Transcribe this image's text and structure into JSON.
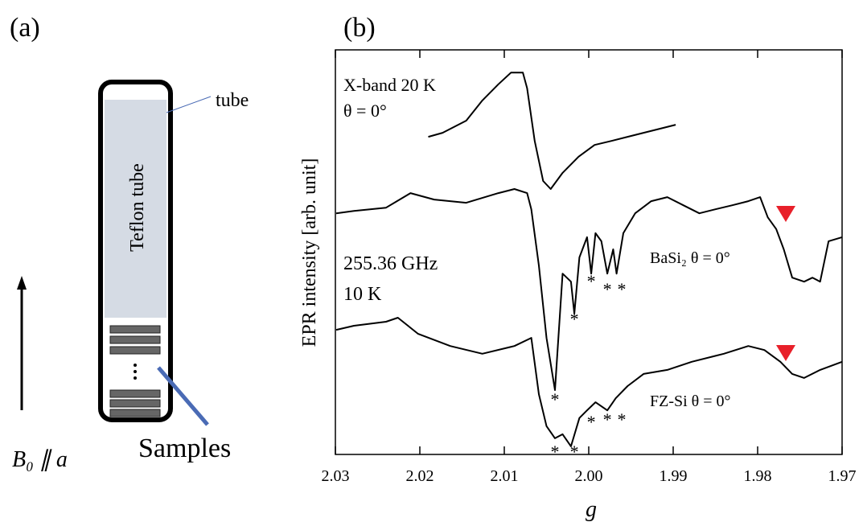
{
  "panel_a": {
    "label": "(a)",
    "tube": "tube",
    "teflon": "Teflon tube",
    "samples": "Samples",
    "field": "B₀ ∥ a"
  },
  "chart_data": {
    "type": "line",
    "panel_label": "(b)",
    "xlabel": "g",
    "ylabel": "EPR intensity [arb. unit]",
    "xlim": [
      2.03,
      1.97
    ],
    "ylim": [
      0,
      100
    ],
    "xticks": [
      2.03,
      2.02,
      2.01,
      {
        "value": 2.0,
        "label": "2.00"
      },
      1.99,
      1.98,
      1.97
    ],
    "series": [
      {
        "name": "X-band 20 K",
        "color": "#000000",
        "x": [
          2.019,
          2.0173,
          2.0145,
          2.0126,
          2.0107,
          2.0092,
          2.0078,
          2.0073,
          2.0064,
          2.0054,
          2.0045,
          2.0031,
          2.0012,
          1.9993,
          1.9973,
          1.9954,
          1.9935,
          1.9916,
          1.9897
        ],
        "values": [
          78.5,
          79.5,
          82.5,
          87.5,
          91.5,
          94.4,
          94.4,
          90.5,
          77.5,
          67.6,
          65.6,
          69.6,
          73.6,
          76.5,
          77.5,
          78.5,
          79.5,
          80.5,
          81.5
        ]
      },
      {
        "name": "BaSi₂ θ = 0°",
        "color": "#000000",
        "x": [
          2.0299,
          2.0278,
          2.024,
          2.0211,
          2.0183,
          2.0145,
          2.0107,
          2.0088,
          2.0073,
          2.0068,
          2.0059,
          2.005,
          2.004,
          2.0031,
          2.0021,
          2.0017,
          2.0011,
          2.0002,
          1.9997,
          1.9992,
          1.9985,
          1.9978,
          1.9971,
          1.9967,
          1.9959,
          1.9945,
          1.9926,
          1.9907,
          1.9888,
          1.9869,
          1.985,
          1.983,
          1.9811,
          1.9797,
          1.9788,
          1.9778,
          1.9769,
          1.9759,
          1.9745,
          1.9735,
          1.9726,
          1.9716,
          1.97
        ],
        "values": [
          59.6,
          60.2,
          61.0,
          64.6,
          63.0,
          62.2,
          64.6,
          65.6,
          64.6,
          60.6,
          46.7,
          28.8,
          15.9,
          44.7,
          42.7,
          34.8,
          48.7,
          53.7,
          44.7,
          54.7,
          52.7,
          44.7,
          50.7,
          44.7,
          54.7,
          59.6,
          62.6,
          63.6,
          61.6,
          59.6,
          60.6,
          61.6,
          62.6,
          63.6,
          58.6,
          55.7,
          50.7,
          43.7,
          42.7,
          43.7,
          42.7,
          52.7,
          53.7
        ]
      },
      {
        "name": "FZ-Si θ = 0°",
        "color": "#000000",
        "x": [
          2.0299,
          2.0278,
          2.024,
          2.0226,
          2.0202,
          2.0164,
          2.0126,
          2.0088,
          2.0068,
          2.0059,
          2.005,
          2.004,
          2.0031,
          2.0021,
          2.0011,
          2.0002,
          1.9992,
          1.9978,
          1.9968,
          1.9954,
          1.9935,
          1.9907,
          1.9878,
          1.984,
          1.9811,
          1.9792,
          1.9773,
          1.9759,
          1.9745,
          1.9726,
          1.97
        ],
        "values": [
          30.8,
          31.8,
          32.8,
          33.8,
          29.8,
          26.8,
          24.9,
          26.8,
          28.8,
          14.9,
          7.0,
          4.0,
          5.0,
          2.0,
          9.0,
          10.9,
          12.9,
          10.9,
          13.9,
          16.9,
          19.9,
          20.9,
          22.9,
          24.9,
          26.8,
          25.8,
          22.9,
          19.9,
          18.9,
          20.9,
          22.9
        ]
      }
    ],
    "notes": [
      "θ = 0°",
      "255.36 GHz",
      "10 K"
    ],
    "annotations": [
      {
        "text": "*",
        "x": 2.004,
        "y": 14.5
      },
      {
        "text": "*",
        "x": 2.0017,
        "y": 34.4
      },
      {
        "text": "*",
        "x": 1.9997,
        "y": 43.7
      },
      {
        "text": "*",
        "x": 1.9978,
        "y": 41.7
      },
      {
        "text": "*",
        "x": 1.9961,
        "y": 41.7
      },
      {
        "text": "*",
        "x": 2.004,
        "y": 1.6
      },
      {
        "text": "*",
        "x": 2.0017,
        "y": 1.6
      },
      {
        "text": "*",
        "x": 1.9997,
        "y": 8.9
      },
      {
        "text": "*",
        "x": 1.9978,
        "y": 9.5
      },
      {
        "text": "*",
        "x": 1.9961,
        "y": 9.5
      }
    ]
  }
}
